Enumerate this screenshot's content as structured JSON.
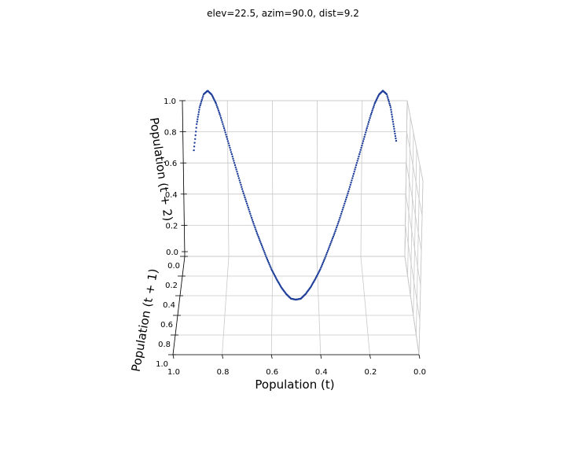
{
  "title": "elev=22.5, azim=90.0, dist=9.2",
  "chart_data": {
    "type": "scatter",
    "title": "elev=22.5, azim=90.0, dist=9.2",
    "projection": "3d",
    "elev": 22.5,
    "azim": 90.0,
    "dist": 9.2,
    "xlabel": "Population (t)",
    "ylabel": "Population (t + 1)",
    "zlabel": "Population (t + 2)",
    "xlim": [
      0.0,
      1.0
    ],
    "ylim": [
      0.0,
      1.0
    ],
    "zlim": [
      0.0,
      1.0
    ],
    "xticks": [
      "1.0",
      "0.8",
      "0.6",
      "0.4",
      "0.2",
      "0.0"
    ],
    "yticks": [
      "0.0",
      "0.2",
      "0.4",
      "0.6",
      "0.8",
      "1.0"
    ],
    "zticks": [
      "0.0",
      "0.2",
      "0.4",
      "0.6",
      "0.8",
      "1.0"
    ],
    "grid": true,
    "color": "#1f3f9a",
    "series": [
      {
        "x": [
          0.95,
          0.935,
          0.92,
          0.9,
          0.88,
          0.86,
          0.84,
          0.82,
          0.8,
          0.78,
          0.76,
          0.74,
          0.72,
          0.7,
          0.68,
          0.66,
          0.64,
          0.62,
          0.6,
          0.58,
          0.56,
          0.54,
          0.52,
          0.5,
          0.48,
          0.46,
          0.44,
          0.42,
          0.4,
          0.38,
          0.36,
          0.34,
          0.32,
          0.3,
          0.28,
          0.26,
          0.24,
          0.22,
          0.2,
          0.18,
          0.16,
          0.14,
          0.12,
          0.1,
          0.08,
          0.065,
          0.05
        ],
        "y": [
          0.18,
          0.23,
          0.28,
          0.34,
          0.4,
          0.46,
          0.51,
          0.56,
          0.61,
          0.65,
          0.69,
          0.73,
          0.77,
          0.8,
          0.83,
          0.86,
          0.88,
          0.9,
          0.92,
          0.93,
          0.94,
          0.95,
          0.96,
          0.96,
          0.96,
          0.95,
          0.94,
          0.93,
          0.92,
          0.9,
          0.88,
          0.86,
          0.83,
          0.8,
          0.77,
          0.73,
          0.69,
          0.65,
          0.61,
          0.56,
          0.51,
          0.46,
          0.4,
          0.34,
          0.28,
          0.23,
          0.18
        ],
        "z": [
          0.02,
          0.35,
          0.58,
          0.78,
          0.88,
          0.9,
          0.86,
          0.78,
          0.68,
          0.56,
          0.44,
          0.32,
          0.2,
          0.08,
          -0.04,
          -0.15,
          -0.26,
          -0.37,
          -0.47,
          -0.56,
          -0.64,
          -0.7,
          -0.74,
          -0.75,
          -0.74,
          -0.7,
          -0.64,
          -0.56,
          -0.47,
          -0.37,
          -0.26,
          -0.15,
          -0.04,
          0.08,
          0.2,
          0.32,
          0.44,
          0.56,
          0.68,
          0.78,
          0.86,
          0.9,
          0.88,
          0.78,
          0.58,
          0.35,
          0.12
        ]
      }
    ]
  }
}
